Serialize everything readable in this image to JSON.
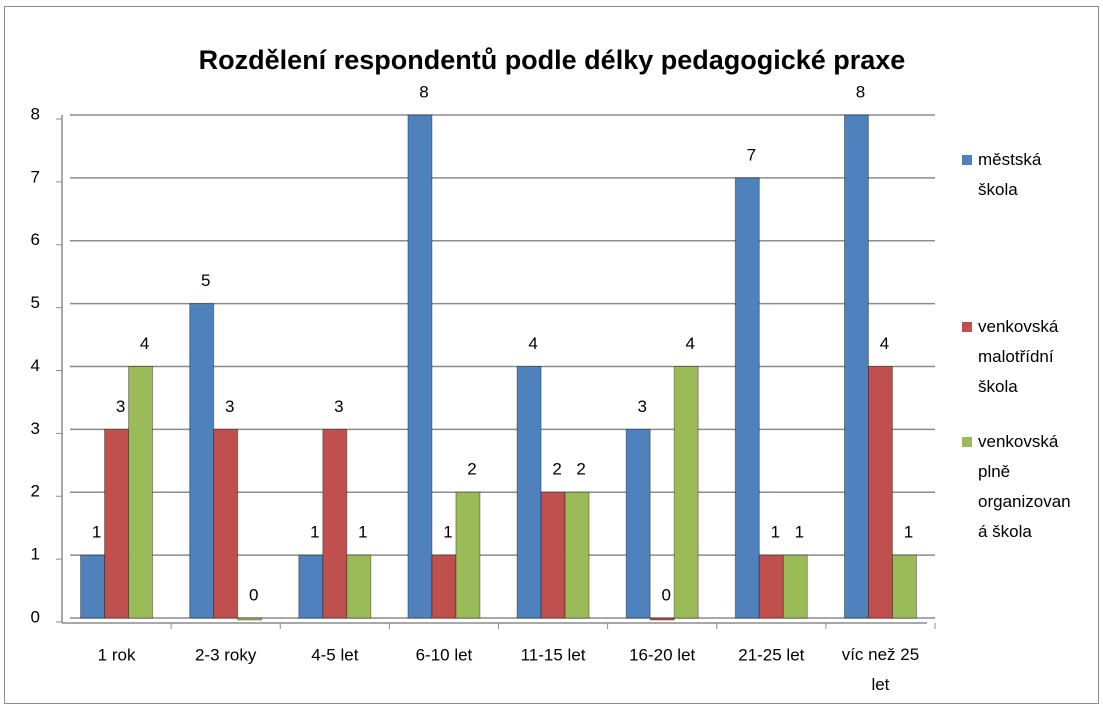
{
  "chart_data": {
    "type": "bar",
    "title": "Rozdělení respondentů podle délky pedagogické praxe",
    "categories": [
      "1 rok",
      "2-3 roky",
      "4-5 let",
      "6-10 let",
      "11-15 let",
      "16-20 let",
      "21-25 let",
      "víc než 25 let"
    ],
    "series": [
      {
        "name": "městská škola",
        "color": "#4f81bd",
        "values": [
          1,
          5,
          1,
          8,
          4,
          3,
          7,
          8
        ]
      },
      {
        "name": "venkovská malotřídní škola",
        "color": "#c0504d",
        "values": [
          3,
          3,
          3,
          1,
          2,
          0,
          1,
          4
        ]
      },
      {
        "name": "venkovská plně organizovaná škola",
        "color": "#9bbb59",
        "values": [
          4,
          0,
          1,
          2,
          2,
          4,
          1,
          1
        ]
      }
    ],
    "ylim": [
      0,
      8
    ],
    "yticks": [
      0,
      1,
      2,
      3,
      4,
      5,
      6,
      7,
      8
    ],
    "grid": true,
    "legend": "right"
  }
}
